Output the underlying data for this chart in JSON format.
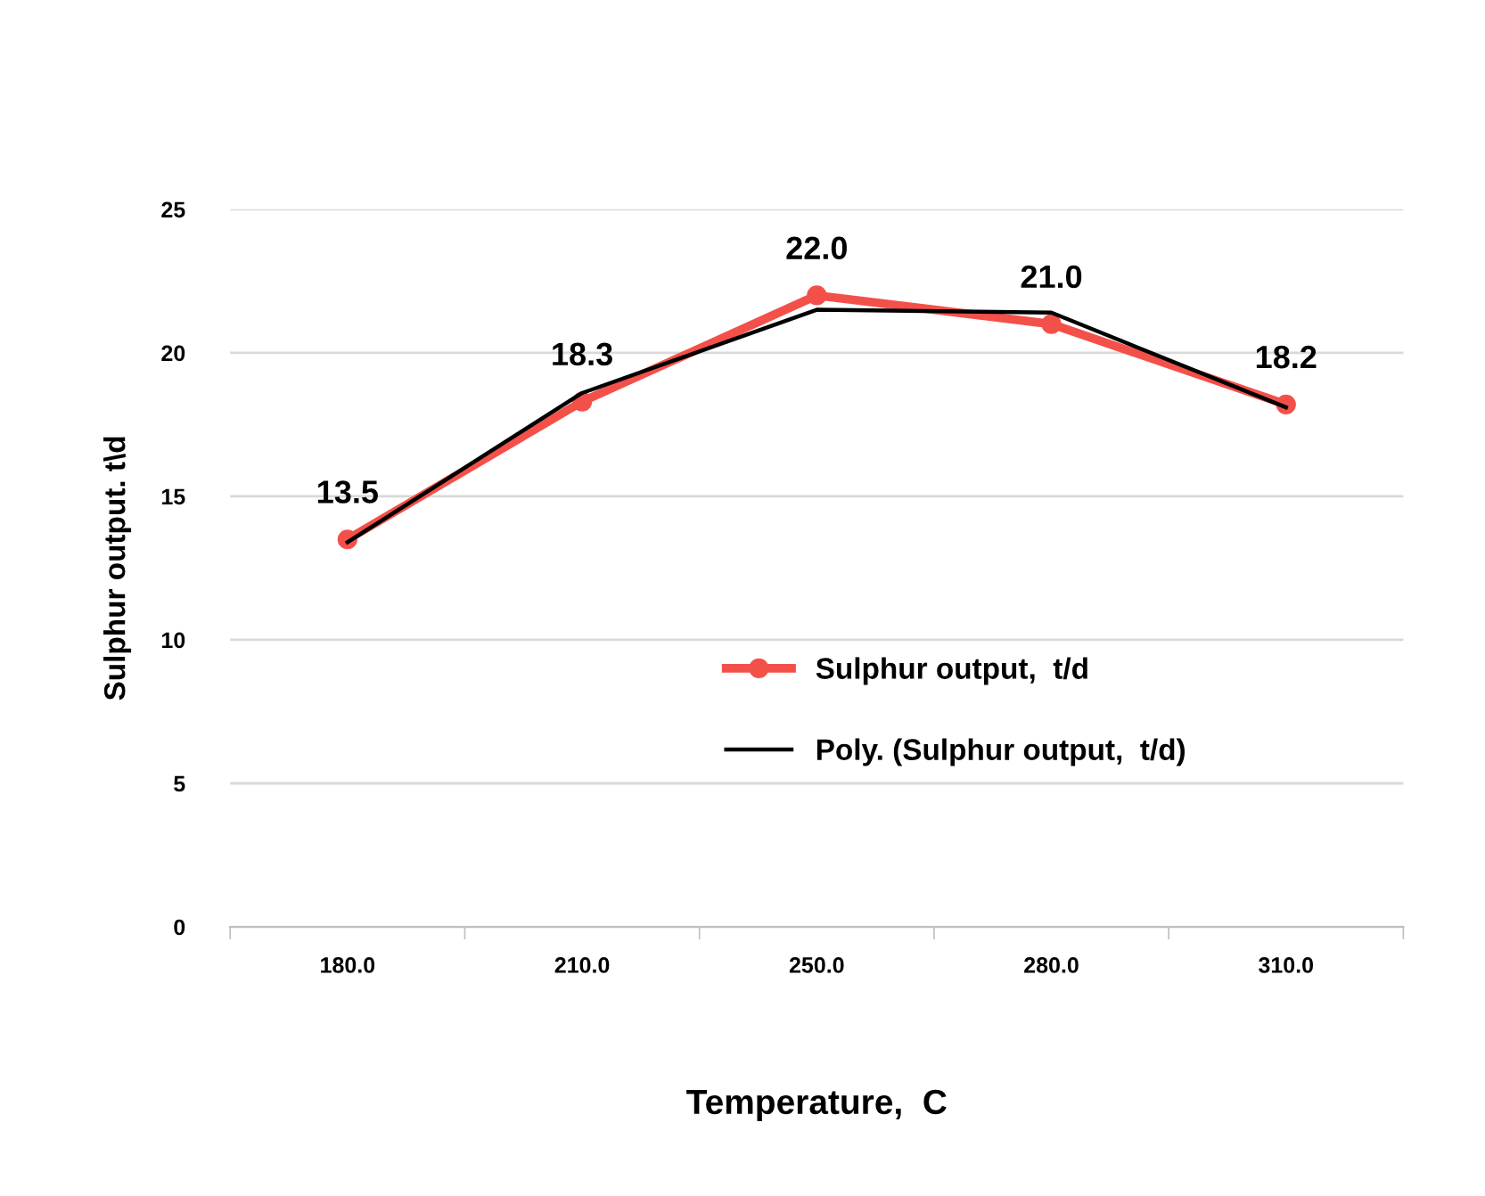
{
  "chart_data": {
    "type": "line",
    "xlabel": "Temperature,  C",
    "ylabel": "Sulphur output. t\\d",
    "categories": [
      "180.0",
      "210.0",
      "250.0",
      "280.0",
      "310.0"
    ],
    "series": [
      {
        "name": "Sulphur output,  t/d",
        "color": "#f4504a",
        "values": [
          13.5,
          18.3,
          22.0,
          21.0,
          18.2
        ],
        "marker": "circle",
        "value_labels": [
          "13.5",
          "18.3",
          "22.0",
          "21.0",
          "18.2"
        ]
      },
      {
        "name": "Poly. (Sulphur output,  t/d)",
        "color": "#000000",
        "values": [
          13.4,
          18.6,
          21.5,
          21.4,
          18.1
        ],
        "marker": "none"
      }
    ],
    "ylim": [
      0,
      25
    ],
    "yticks": [
      0,
      5,
      10,
      15,
      20,
      25
    ],
    "grid": "y",
    "legend": "center",
    "line_style": "solid"
  }
}
